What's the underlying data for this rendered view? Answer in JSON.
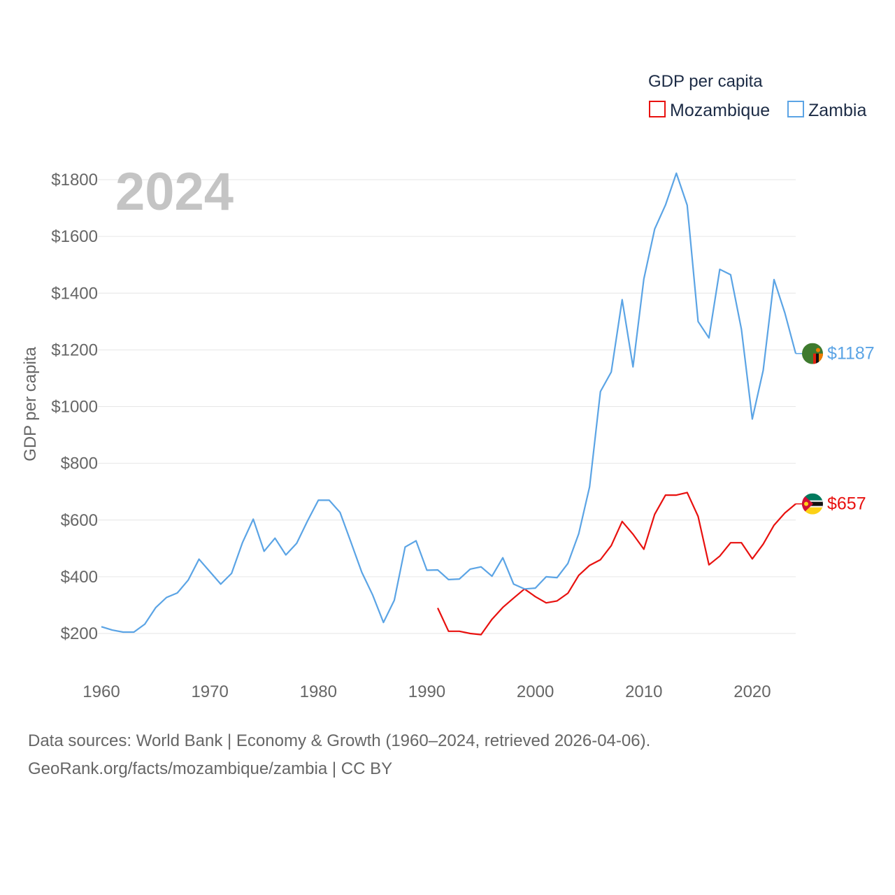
{
  "chart_data": {
    "type": "line",
    "title": "2024",
    "ylabel": "GDP per capita",
    "xlabel": "",
    "xlim": [
      1960,
      2024
    ],
    "ylim": [
      0,
      1900
    ],
    "x_ticks": [
      1960,
      1970,
      1980,
      1990,
      2000,
      2010,
      2020
    ],
    "y_ticks": [
      {
        "value": 200,
        "label": "$200"
      },
      {
        "value": 400,
        "label": "$400"
      },
      {
        "value": 600,
        "label": "$600"
      },
      {
        "value": 800,
        "label": "$800"
      },
      {
        "value": 1000,
        "label": "$1000"
      },
      {
        "value": 1200,
        "label": "$1200"
      },
      {
        "value": 1400,
        "label": "$1400"
      },
      {
        "value": 1600,
        "label": "$1600"
      },
      {
        "value": 1800,
        "label": "$1800"
      }
    ],
    "legend": {
      "title": "GDP per capita",
      "position": "top-right"
    },
    "series": [
      {
        "name": "Mozambique",
        "color": "#e8110f",
        "end_label": "$657",
        "flag": "mozambique-flag",
        "x": [
          1991,
          1992,
          1993,
          1994,
          1995,
          1996,
          1997,
          1998,
          1999,
          2000,
          2001,
          2002,
          2003,
          2004,
          2005,
          2006,
          2007,
          2008,
          2009,
          2010,
          2011,
          2012,
          2013,
          2014,
          2015,
          2016,
          2017,
          2018,
          2019,
          2020,
          2021,
          2022,
          2023,
          2024
        ],
        "values": [
          290,
          208,
          208,
          200,
          196,
          250,
          292,
          325,
          357,
          330,
          308,
          315,
          342,
          405,
          440,
          460,
          510,
          595,
          550,
          497,
          620,
          688,
          688,
          697,
          613,
          442,
          473,
          520,
          520,
          463,
          515,
          582,
          625,
          657
        ]
      },
      {
        "name": "Zambia",
        "color": "#5ba4e5",
        "end_label": "$1187",
        "flag": "zambia-flag",
        "x": [
          1960,
          1961,
          1962,
          1963,
          1964,
          1965,
          1966,
          1967,
          1968,
          1969,
          1970,
          1971,
          1972,
          1973,
          1974,
          1975,
          1976,
          1977,
          1978,
          1979,
          1980,
          1981,
          1982,
          1983,
          1984,
          1985,
          1986,
          1987,
          1988,
          1989,
          1990,
          1991,
          1992,
          1993,
          1994,
          1995,
          1996,
          1997,
          1998,
          1999,
          2000,
          2001,
          2002,
          2003,
          2004,
          2005,
          2006,
          2007,
          2008,
          2009,
          2010,
          2011,
          2012,
          2013,
          2014,
          2015,
          2016,
          2017,
          2018,
          2019,
          2020,
          2021,
          2022,
          2023,
          2024
        ],
        "values": [
          224,
          212,
          205,
          205,
          233,
          291,
          327,
          343,
          388,
          462,
          418,
          374,
          412,
          520,
          603,
          490,
          536,
          477,
          518,
          597,
          670,
          670,
          627,
          522,
          416,
          336,
          239,
          317,
          505,
          527,
          423,
          424,
          390,
          392,
          427,
          435,
          402,
          467,
          374,
          357,
          360,
          400,
          397,
          447,
          552,
          717,
          1053,
          1122,
          1377,
          1140,
          1450,
          1626,
          1711,
          1823,
          1710,
          1300,
          1242,
          1484,
          1465,
          1272,
          956,
          1128,
          1448,
          1330,
          1187
        ]
      }
    ]
  },
  "source": {
    "line1": "Data sources: World Bank | Economy & Growth (1960–2024, retrieved 2026-04-06).",
    "line2": "GeoRank.org/facts/mozambique/zambia | CC BY"
  }
}
